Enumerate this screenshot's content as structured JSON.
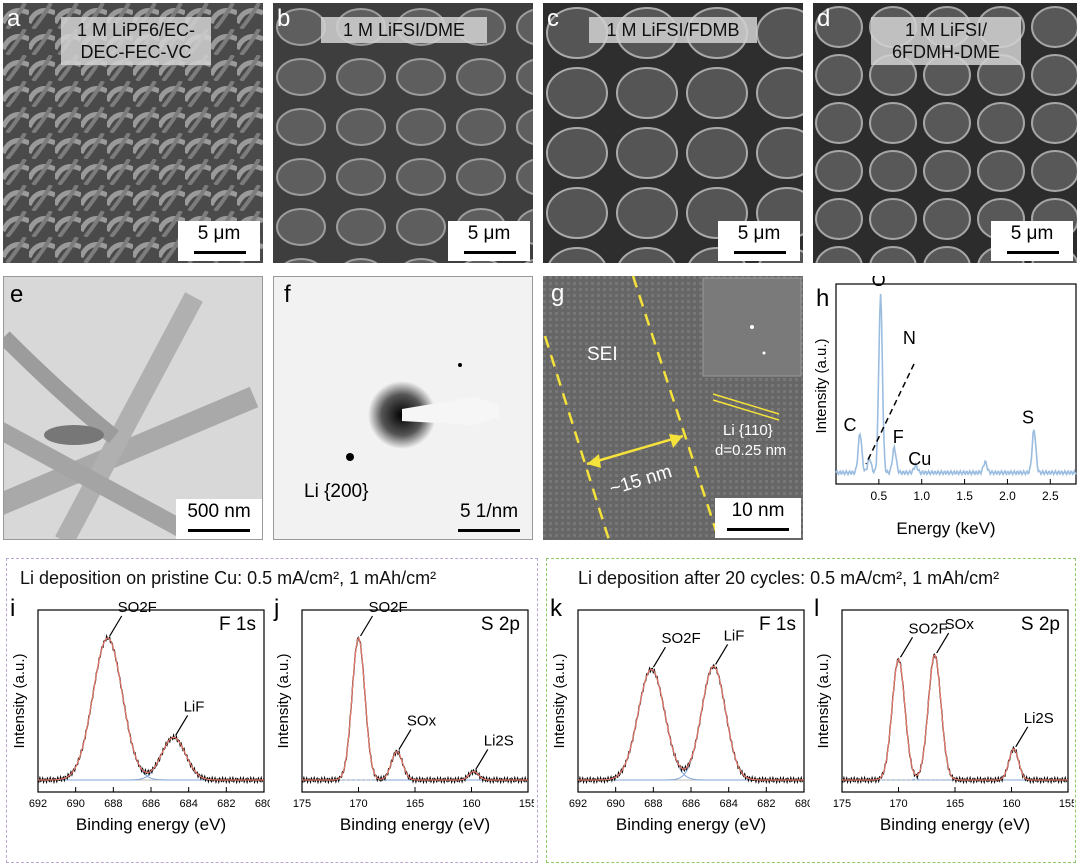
{
  "panels_sem": [
    {
      "letter": "a",
      "label": [
        "1 M LiPF6/EC-",
        "DEC-FEC-VC"
      ],
      "scale": "5 μm"
    },
    {
      "letter": "b",
      "label": [
        "1 M LiFSI/DME"
      ],
      "scale": "5 μm"
    },
    {
      "letter": "c",
      "label": [
        "1 M LiFSI/FDMB"
      ],
      "scale": "5 μm"
    },
    {
      "letter": "d",
      "label": [
        "1 M LiFSI/",
        "6FDMH-DME"
      ],
      "scale": "5 μm"
    }
  ],
  "panel_e": {
    "letter": "e",
    "scale": "500 nm"
  },
  "panel_f": {
    "letter": "f",
    "ring_label": "Li {200}",
    "scale": "5 1/nm"
  },
  "panel_g": {
    "letter": "g",
    "sei": "SEI",
    "width": "~15 nm",
    "lattice": "Li {110}",
    "dspacing": "d=0.25 nm",
    "scale": "10 nm"
  },
  "panel_h": {
    "letter": "h",
    "chart_data": {
      "type": "line",
      "xlabel": "Energy (keV)",
      "ylabel": "Intensity (a.u.)",
      "xlim": [
        0,
        2.8
      ],
      "xticks": [
        "0.5",
        "1.0",
        "1.5",
        "2.0",
        "2.5"
      ],
      "peaks": [
        {
          "label": "C",
          "x": 0.28,
          "y": 0.22
        },
        {
          "label": "O",
          "x": 0.52,
          "y": 1.0
        },
        {
          "label": "N",
          "x": 0.39,
          "y": 0.08
        },
        {
          "label": "F",
          "x": 0.68,
          "y": 0.14
        },
        {
          "label": "Cu",
          "x": 0.93,
          "y": 0.04
        },
        {
          "label": "S",
          "x": 2.31,
          "y": 0.24
        }
      ],
      "color": "#9bbde0"
    }
  },
  "group_left_title": "Li deposition on pristine Cu: 0.5 mA/cm², 1 mAh/cm²",
  "group_right_title": "Li deposition after 20 cycles: 0.5 mA/cm², 1 mAh/cm²",
  "xps": [
    {
      "letter": "i",
      "core": "F 1s",
      "xlabel": "Binding energy (eV)",
      "ylabel": "Intensity (a.u.)",
      "chart_data": {
        "type": "line",
        "xlim": [
          692,
          680
        ],
        "xticks": [
          "692",
          "690",
          "688",
          "686",
          "684",
          "682",
          "680"
        ],
        "peaks": [
          {
            "label": "SO2F",
            "center": 688.3,
            "height": 1.0,
            "width": 1.1
          },
          {
            "label": "LiF",
            "center": 684.8,
            "height": 0.3,
            "width": 0.9
          }
        ]
      }
    },
    {
      "letter": "j",
      "core": "S 2p",
      "xlabel": "Binding energy (eV)",
      "ylabel": "Intensity (a.u.)",
      "chart_data": {
        "type": "line",
        "xlim": [
          175,
          155
        ],
        "xticks": [
          "175",
          "170",
          "165",
          "160",
          "155"
        ],
        "peaks": [
          {
            "label": "SO2F",
            "center": 170.0,
            "height": 1.0,
            "width": 0.8
          },
          {
            "label": "SOx",
            "center": 166.6,
            "height": 0.2,
            "width": 0.7
          },
          {
            "label": "Li2S",
            "center": 159.8,
            "height": 0.06,
            "width": 0.6
          }
        ]
      }
    },
    {
      "letter": "k",
      "core": "F 1s",
      "xlabel": "Binding energy (eV)",
      "ylabel": "Intensity (a.u.)",
      "chart_data": {
        "type": "line",
        "xlim": [
          692,
          680
        ],
        "xticks": [
          "692",
          "690",
          "688",
          "686",
          "684",
          "682",
          "680"
        ],
        "peaks": [
          {
            "label": "SO2F",
            "center": 688.1,
            "height": 0.78,
            "width": 1.0
          },
          {
            "label": "LiF",
            "center": 684.8,
            "height": 0.8,
            "width": 0.9
          }
        ]
      }
    },
    {
      "letter": "l",
      "core": "S 2p",
      "xlabel": "Binding energy (eV)",
      "ylabel": "Intensity (a.u.)",
      "chart_data": {
        "type": "line",
        "xlim": [
          175,
          155
        ],
        "xticks": [
          "175",
          "170",
          "165",
          "160",
          "155"
        ],
        "peaks": [
          {
            "label": "SO2F",
            "center": 170.0,
            "height": 0.85,
            "width": 0.8
          },
          {
            "label": "SOx",
            "center": 166.8,
            "height": 0.88,
            "width": 0.8
          },
          {
            "label": "Li2S",
            "center": 159.8,
            "height": 0.22,
            "width": 0.6
          }
        ]
      }
    }
  ]
}
